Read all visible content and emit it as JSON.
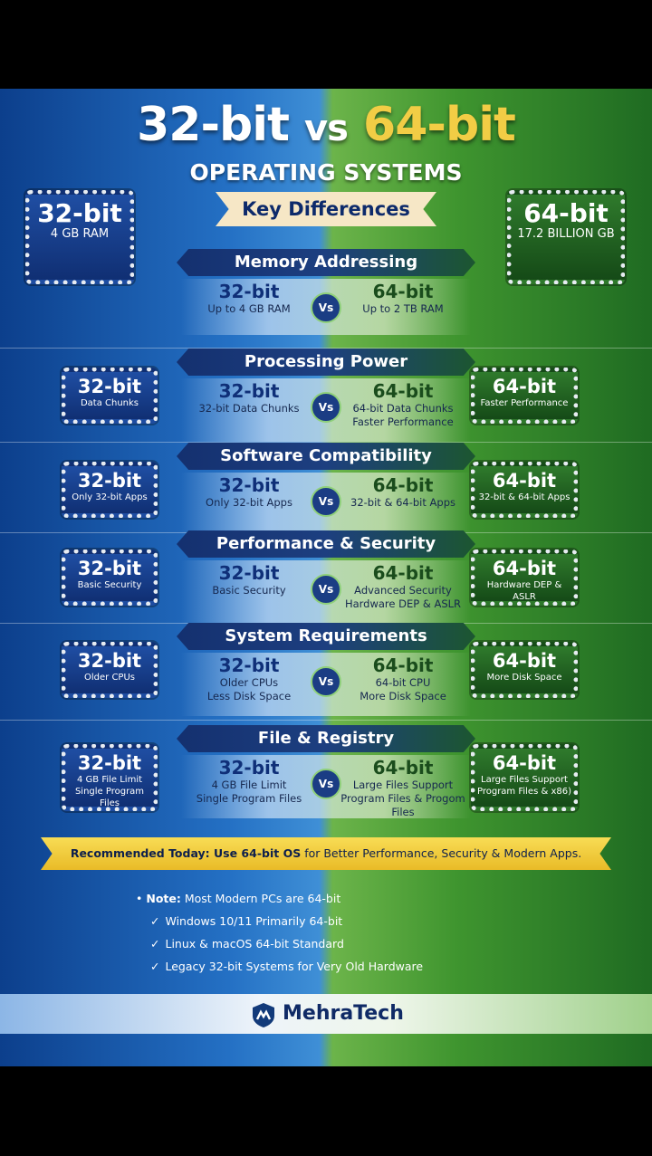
{
  "header": {
    "title_left": "32-bit",
    "title_mid": "vs",
    "title_right": "64-bit",
    "subtitle": "OPERATING SYSTEMS",
    "ribbon": "Key Differences",
    "left_chip": {
      "title": "32-bit",
      "lines": [
        "4 GB RAM"
      ]
    },
    "right_chip": {
      "title": "64-bit",
      "lines": [
        "17.2 BILLION GB"
      ]
    }
  },
  "sections": [
    {
      "heading": "Memory Addressing",
      "left": {
        "title": "32-bit",
        "lines": [
          "Up to 4 GB RAM"
        ]
      },
      "vs": "Vs",
      "right": {
        "title": "64-bit",
        "lines": [
          "Up to 2 TB RAM"
        ]
      }
    },
    {
      "heading": "Processing Power",
      "left_chip": {
        "title": "32-bit",
        "lines": [
          "Data Chunks"
        ]
      },
      "left": {
        "title": "32-bit",
        "lines": [
          "32-bit Data Chunks"
        ]
      },
      "vs": "Vs",
      "right": {
        "title": "64-bit",
        "lines": [
          "64-bit Data Chunks",
          "Faster Performance"
        ]
      },
      "right_chip": {
        "title": "64-bit",
        "lines": [
          "Faster Performance"
        ]
      }
    },
    {
      "heading": "Software Compatibility",
      "left_chip": {
        "title": "32-bit",
        "lines": [
          "Only 32-bit Apps"
        ]
      },
      "left": {
        "title": "32-bit",
        "lines": [
          "Only 32-bit Apps"
        ]
      },
      "vs": "Vs",
      "right": {
        "title": "64-bit",
        "lines": [
          "32-bit & 64-bit Apps"
        ]
      },
      "right_chip": {
        "title": "64-bit",
        "lines": [
          "32-bit & 64-bit Apps"
        ]
      }
    },
    {
      "heading": "Performance & Security",
      "left_chip": {
        "title": "32-bit",
        "lines": [
          "Basic Security"
        ]
      },
      "left": {
        "title": "32-bit",
        "lines": [
          "Basic Security"
        ]
      },
      "vs": "Vs",
      "right": {
        "title": "64-bit",
        "lines": [
          "Advanced Security",
          "Hardware DEP & ASLR"
        ]
      },
      "right_chip": {
        "title": "64-bit",
        "lines": [
          "Hardware DEP & ASLR"
        ]
      }
    },
    {
      "heading": "System Requirements",
      "left_chip": {
        "title": "32-bit",
        "lines": [
          "Older CPUs"
        ]
      },
      "left": {
        "title": "32-bit",
        "lines": [
          "Older CPUs",
          "Less Disk Space"
        ]
      },
      "vs": "Vs",
      "right": {
        "title": "64-bit",
        "lines": [
          "64-bit CPU",
          "More Disk Space"
        ]
      },
      "right_chip": {
        "title": "64-bit",
        "lines": [
          "More Disk Space"
        ]
      }
    },
    {
      "heading": "File & Registry",
      "left_chip": {
        "title": "32-bit",
        "lines": [
          "4 GB File Limit",
          "Single Program Files"
        ]
      },
      "left": {
        "title": "32-bit",
        "lines": [
          "4 GB File Limit",
          "Single Program Files"
        ]
      },
      "vs": "Vs",
      "right": {
        "title": "64-bit",
        "lines": [
          "Large Files Support",
          "Program Files & Progom Files"
        ]
      },
      "right_chip": {
        "title": "64-bit",
        "lines": [
          "Large Files Support",
          "Program Files & x86)"
        ]
      }
    }
  ],
  "banner": {
    "bold": "Recommended Today: Use 64-bit OS",
    "rest": " for Better Performance, Security & Modern Apps."
  },
  "notes": {
    "label": "Note:",
    "text": "Most Modern PCs are 64-bit",
    "items": [
      "Windows 10/11 Primarily 64-bit",
      "Linux & macOS 64-bit Standard",
      "Legacy 32-bit Systems for Very Old Hardware"
    ]
  },
  "footer": {
    "brand": "MehraTech"
  }
}
